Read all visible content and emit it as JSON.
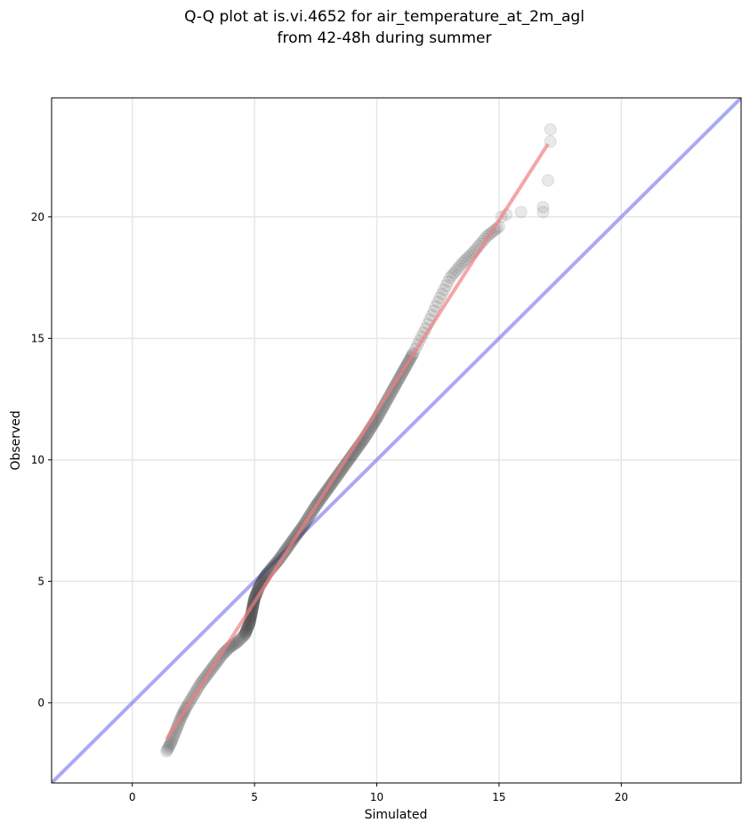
{
  "chart_data": {
    "type": "scatter",
    "title_lines": [
      "Q-Q plot at is.vi.4652 for air_temperature_at_2m_agl",
      "from 42-48h during summer"
    ],
    "xlabel": "Simulated",
    "ylabel": "Observed",
    "xlim": [
      -3.3,
      24.9
    ],
    "ylim": [
      -3.3,
      24.9
    ],
    "xticks": [
      0,
      5,
      10,
      15,
      20
    ],
    "yticks": [
      0,
      5,
      10,
      15,
      20
    ],
    "grid": true,
    "legend": "none",
    "colors": {
      "points": "#333333",
      "fit_line": "#f08080",
      "identity_line": "#7b7bf0",
      "grid": "#e6e6e6"
    },
    "quantile_curve": [
      [
        1.4,
        -2.0
      ],
      [
        1.6,
        -1.6
      ],
      [
        1.8,
        -1.1
      ],
      [
        2.0,
        -0.6
      ],
      [
        2.2,
        -0.2
      ],
      [
        2.5,
        0.3
      ],
      [
        2.8,
        0.8
      ],
      [
        3.1,
        1.2
      ],
      [
        3.4,
        1.6
      ],
      [
        3.7,
        2.0
      ],
      [
        4.0,
        2.3
      ],
      [
        4.3,
        2.5
      ],
      [
        4.6,
        2.8
      ],
      [
        4.8,
        3.3
      ],
      [
        4.9,
        3.8
      ],
      [
        5.0,
        4.3
      ],
      [
        5.2,
        4.8
      ],
      [
        5.5,
        5.3
      ],
      [
        6.0,
        5.9
      ],
      [
        6.5,
        6.6
      ],
      [
        7.0,
        7.3
      ],
      [
        7.5,
        8.1
      ],
      [
        8.0,
        8.8
      ],
      [
        8.5,
        9.5
      ],
      [
        9.0,
        10.2
      ],
      [
        9.5,
        10.9
      ],
      [
        10.0,
        11.7
      ],
      [
        10.5,
        12.6
      ],
      [
        11.0,
        13.5
      ],
      [
        11.5,
        14.4
      ],
      [
        12.0,
        15.4
      ],
      [
        12.5,
        16.5
      ],
      [
        13.0,
        17.5
      ],
      [
        13.5,
        18.1
      ],
      [
        14.0,
        18.6
      ],
      [
        14.5,
        19.2
      ],
      [
        15.0,
        19.6
      ]
    ],
    "outlier_points": [
      [
        15.1,
        20.0
      ],
      [
        15.3,
        20.1
      ],
      [
        15.9,
        20.2
      ],
      [
        16.8,
        20.2
      ],
      [
        16.8,
        20.4
      ],
      [
        17.0,
        21.5
      ],
      [
        17.1,
        23.1
      ],
      [
        17.1,
        23.6
      ]
    ],
    "fit_line": {
      "x": [
        1.4,
        17.0
      ],
      "y": [
        -1.5,
        23.0
      ]
    },
    "identity_line": {
      "x": [
        -3.3,
        24.9
      ],
      "y": [
        -3.3,
        24.9
      ]
    }
  }
}
